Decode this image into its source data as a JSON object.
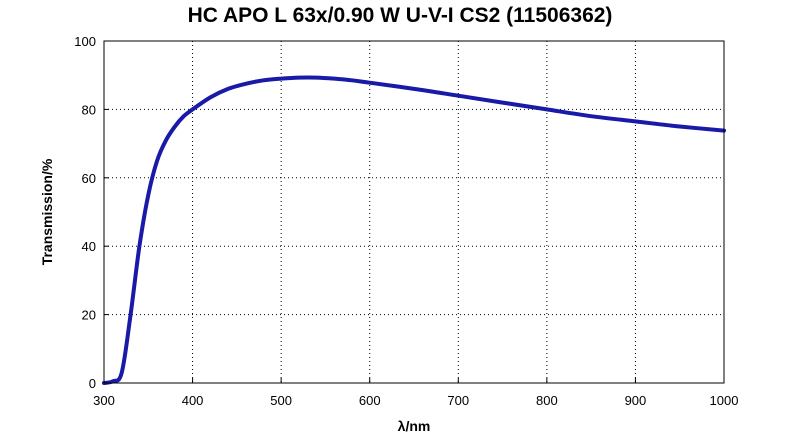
{
  "chart_data": {
    "type": "line",
    "title": "HC APO L 63x/0.90 W U-V-I CS2 (11506362)",
    "xlabel": "λ/nm",
    "ylabel": "Transmission/%",
    "xlim": [
      300,
      1000
    ],
    "ylim": [
      0,
      100
    ],
    "xticks": [
      300,
      400,
      500,
      600,
      700,
      800,
      900,
      1000
    ],
    "yticks": [
      0,
      20,
      40,
      60,
      80,
      100
    ],
    "grid": true,
    "grid_style": "dotted",
    "series_color": "#1a1aa8",
    "series": [
      {
        "x": [
          300,
          310,
          320,
          330,
          340,
          350,
          360,
          370,
          380,
          390,
          400,
          420,
          440,
          460,
          480,
          500,
          520,
          540,
          560,
          580,
          600,
          650,
          700,
          750,
          800,
          850,
          900,
          950,
          1000
        ],
        "y": [
          0,
          0.5,
          3,
          20,
          40,
          55,
          65,
          71,
          75,
          78,
          80,
          83.5,
          86,
          87.5,
          88.5,
          89,
          89.3,
          89.3,
          89,
          88.5,
          87.8,
          86,
          84,
          82,
          80,
          78,
          76.5,
          75,
          73.8
        ]
      }
    ]
  }
}
